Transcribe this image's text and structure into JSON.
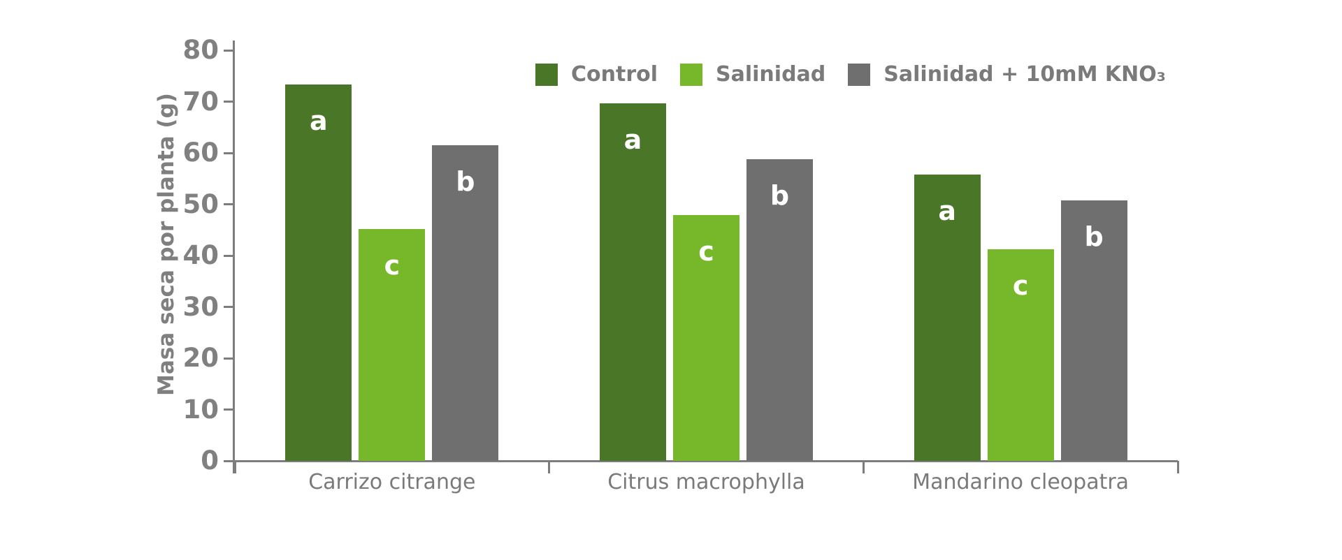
{
  "page": {
    "background_color": "#ffffff"
  },
  "chart_data": {
    "type": "bar",
    "title": "",
    "xlabel": "",
    "ylabel": "Masa seca por planta (g)",
    "ylim": [
      0,
      80
    ],
    "yticks": [
      0,
      10,
      20,
      30,
      40,
      50,
      60,
      70,
      80
    ],
    "grid": false,
    "legend_position": "top",
    "categories": [
      "Carrizo citrange",
      "Citrus macrophylla",
      "Mandarino cleopatra"
    ],
    "series": [
      {
        "name": "Control",
        "letter": "a",
        "color": "#4a7628",
        "values": [
          73.4,
          69.7,
          55.8
        ]
      },
      {
        "name": "Salinidad",
        "letter": "c",
        "color": "#76b82a",
        "values": [
          45.2,
          47.9,
          41.2
        ]
      },
      {
        "name": "Salinidad + 10mM KNO₃",
        "letter": "b",
        "color": "#6f6f6f",
        "values": [
          61.5,
          58.8,
          50.7
        ]
      }
    ],
    "bar_letter_color": "#ffffff",
    "axis_color": "#7d7d7d",
    "text_color": "#7f7f7f"
  }
}
